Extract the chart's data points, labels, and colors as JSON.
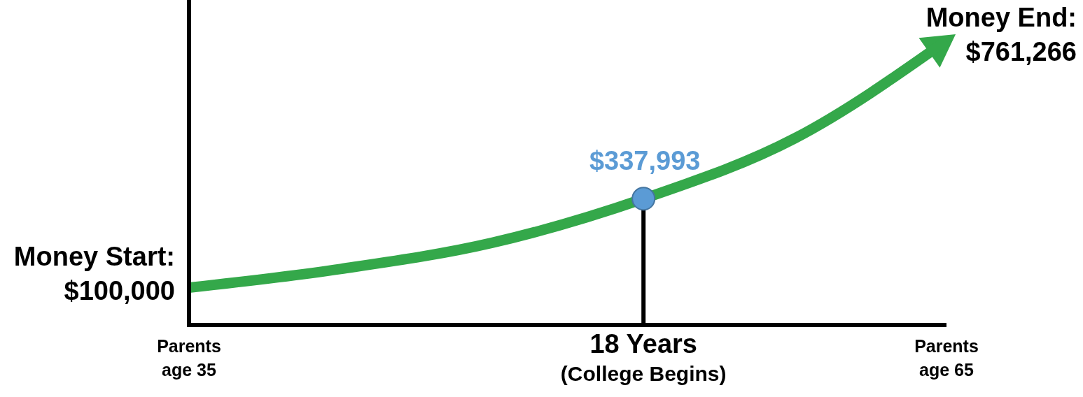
{
  "chart_data": {
    "type": "line",
    "categories": [
      "Parents\nage 35",
      null,
      null,
      "18 Years\n(College Begins)",
      null,
      "Parents\nage 65"
    ],
    "ylim": [
      0,
      870000
    ],
    "tick_labels": "x",
    "series": [
      {
        "color": "#34a84a",
        "values": [
          100000,
          150000,
          220000,
          337993,
          500000,
          761266
        ],
        "value_labels": [
          "$100,000",
          null,
          null,
          null,
          null,
          "$761,266"
        ]
      },
      {
        "type": "lollipop",
        "color": "#5b9bd5",
        "values": [
          null,
          null,
          null,
          337993,
          null,
          null
        ],
        "value_labels": [
          null,
          null,
          null,
          "$337,993",
          null,
          null
        ]
      }
    ],
    "annotations": [
      "Money Start:",
      "Money End:"
    ]
  }
}
